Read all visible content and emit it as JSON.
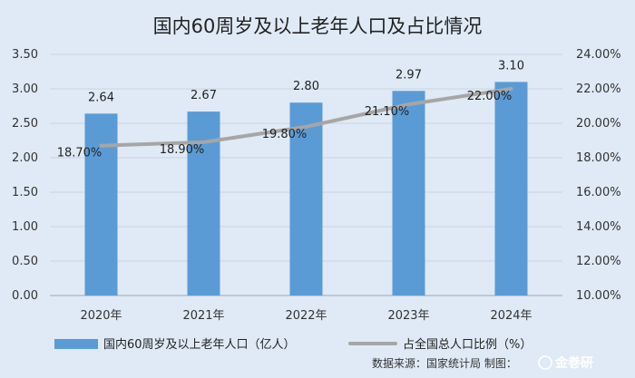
{
  "chart_data": {
    "type": "bar",
    "title": "国内60周岁及以上老年人口及占比情况",
    "categories": [
      "2020年",
      "2021年",
      "2022年",
      "2023年",
      "2024年"
    ],
    "series": [
      {
        "name": "国内60周岁及以上老年人口（亿人）",
        "type": "bar",
        "axis": "left",
        "values": [
          2.64,
          2.67,
          2.8,
          2.97,
          3.1
        ],
        "labels": [
          "2.64",
          "2.67",
          "2.80",
          "2.97",
          "3.10"
        ],
        "color": "#5b9bd5"
      },
      {
        "name": "占全国总人口比例（%）",
        "type": "line",
        "axis": "right",
        "values": [
          18.7,
          18.9,
          19.8,
          21.1,
          22.0
        ],
        "labels": [
          "18.70%",
          "18.90%",
          "19.80%",
          "21.10%",
          "22.00%"
        ],
        "color": "#a6a6a6"
      }
    ],
    "y_left": {
      "min": 0,
      "max": 3.5,
      "step": 0.5,
      "ticks": [
        "0.00",
        "0.50",
        "1.00",
        "1.50",
        "2.00",
        "2.50",
        "3.00",
        "3.50"
      ]
    },
    "y_right": {
      "min": 10,
      "max": 24,
      "step": 2,
      "ticks": [
        "10.00%",
        "12.00%",
        "14.00%",
        "16.00%",
        "18.00%",
        "20.00%",
        "22.00%",
        "24.00%"
      ]
    },
    "legend_position": "bottom",
    "grid": true
  },
  "source": "数据来源：国家统计局   制图：",
  "watermark": "金巻研"
}
